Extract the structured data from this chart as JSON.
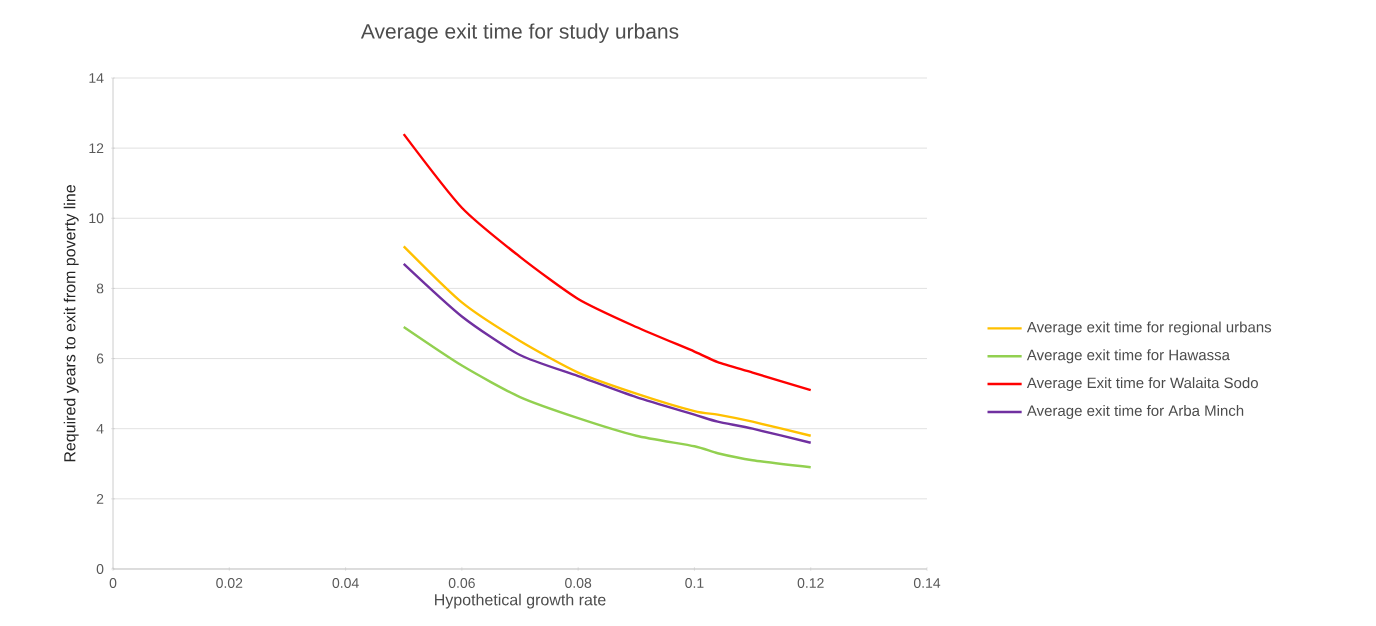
{
  "chart_data": {
    "type": "line",
    "title": "Average exit time for study urbans",
    "xlabel": "Hypothetical growth rate",
    "ylabel": "Required years to exit from poverty line",
    "x": [
      0.05,
      0.06,
      0.07,
      0.08,
      0.09,
      0.1,
      0.104,
      0.11,
      0.12
    ],
    "series": [
      {
        "name": "Average exit time for regional urbans",
        "color": "#ffc000",
        "values": [
          9.2,
          7.6,
          6.5,
          5.6,
          5.0,
          4.5,
          4.4,
          4.2,
          3.8
        ]
      },
      {
        "name": "Average exit time for Hawassa",
        "color": "#92d050",
        "values": [
          6.9,
          5.8,
          4.9,
          4.3,
          3.8,
          3.5,
          3.3,
          3.1,
          2.9
        ]
      },
      {
        "name": "Average Exit time for Walaita Sodo",
        "color": "#ff0000",
        "values": [
          12.4,
          10.3,
          8.9,
          7.7,
          6.9,
          6.2,
          5.9,
          5.6,
          5.1
        ]
      },
      {
        "name": "Average exit time for Arba Minch",
        "color": "#7030a0",
        "values": [
          8.7,
          7.2,
          6.1,
          5.5,
          4.9,
          4.4,
          4.2,
          4.0,
          3.6
        ]
      }
    ],
    "xlim": [
      0,
      0.14
    ],
    "xticks": [
      0,
      0.02,
      0.04,
      0.06,
      0.08,
      0.1,
      0.12,
      0.14
    ],
    "ylim": [
      0,
      14
    ],
    "yticks": [
      0,
      2,
      4,
      6,
      8,
      10,
      12,
      14
    ],
    "grid": "y",
    "legend": "right",
    "marker": "none",
    "line_style": "solid"
  }
}
